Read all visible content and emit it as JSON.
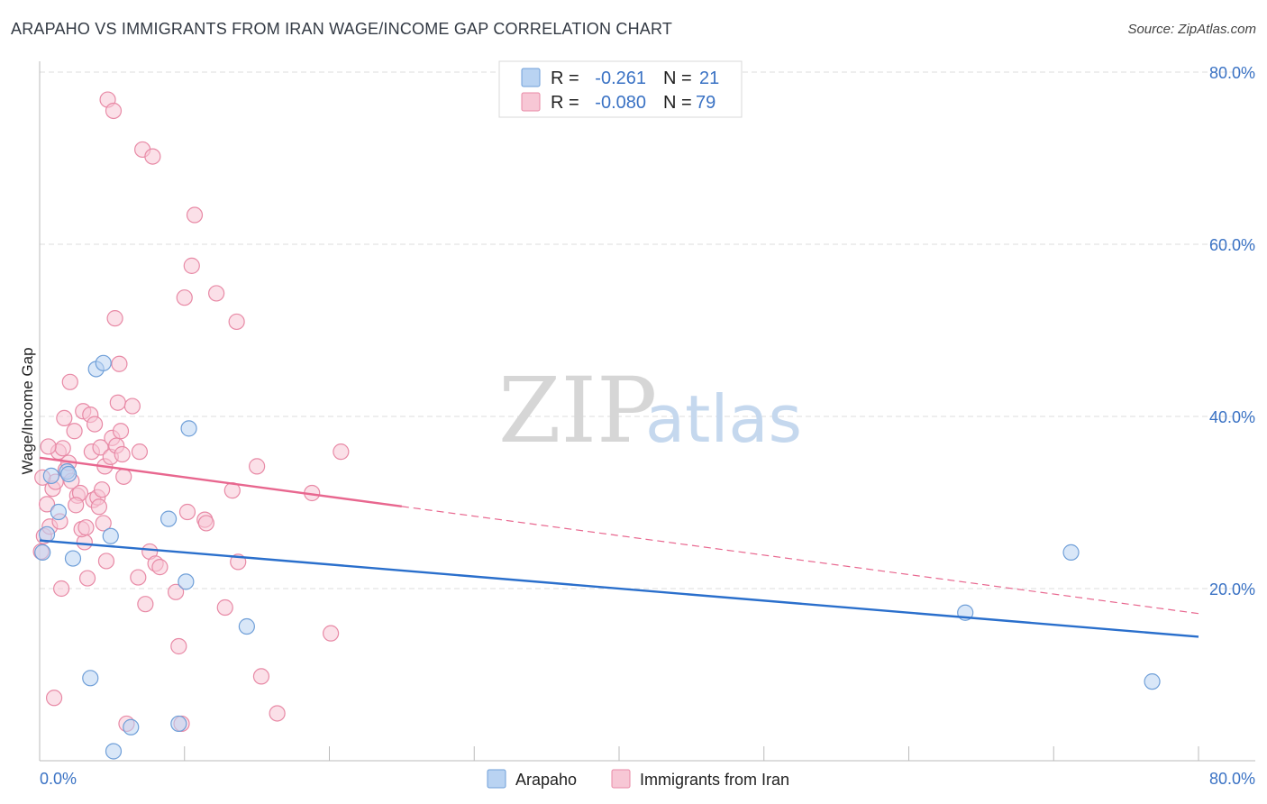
{
  "title": "ARAPAHO VS IMMIGRANTS FROM IRAN WAGE/INCOME GAP CORRELATION CHART",
  "source": "Source: ZipAtlas.com",
  "colors": {
    "blue_fill": "#b9d3f2",
    "blue_stroke": "#6f9fd8",
    "blue_line": "#2a6fcc",
    "pink_fill": "#f7c7d5",
    "pink_stroke": "#e88aa6",
    "pink_line": "#e8678f",
    "grid": "#dcdcdc",
    "axis_text": "#3a72c4"
  },
  "legend": {
    "rows": [
      {
        "r_label": "R =",
        "r_value": "-0.261",
        "n_label": "N =",
        "n_value": "21"
      },
      {
        "r_label": "R =",
        "r_value": "-0.080",
        "n_label": "N =",
        "n_value": "79"
      }
    ]
  },
  "watermark": {
    "zip": "ZIP",
    "atlas": "atlas"
  },
  "chart_data": {
    "type": "scatter",
    "title": "ARAPAHO VS IMMIGRANTS FROM IRAN WAGE/INCOME GAP CORRELATION CHART",
    "xlabel": "",
    "ylabel": "Wage/Income Gap",
    "xlim": [
      0,
      80
    ],
    "ylim": [
      0,
      80
    ],
    "x_tick_labels": [
      "0.0%",
      "80.0%"
    ],
    "y_ticks": [
      20,
      40,
      60,
      80
    ],
    "y_tick_labels": [
      "20.0%",
      "40.0%",
      "60.0%",
      "80.0%"
    ],
    "series": [
      {
        "name": "Arapaho",
        "r": -0.261,
        "n": 21,
        "trend": {
          "x": [
            0,
            80
          ],
          "y": [
            25.6,
            14.4
          ],
          "dashed_from": null
        },
        "points": [
          [
            0.2,
            24.2
          ],
          [
            0.5,
            26.3
          ],
          [
            0.8,
            33.1
          ],
          [
            1.3,
            28.9
          ],
          [
            1.9,
            33.6
          ],
          [
            2.3,
            23.5
          ],
          [
            3.5,
            9.6
          ],
          [
            3.9,
            45.5
          ],
          [
            4.9,
            26.1
          ],
          [
            5.1,
            1.1
          ],
          [
            6.3,
            3.9
          ],
          [
            8.9,
            28.1
          ],
          [
            9.6,
            4.3
          ],
          [
            10.1,
            20.8
          ],
          [
            10.3,
            38.6
          ],
          [
            14.3,
            15.6
          ],
          [
            63.9,
            17.2
          ],
          [
            71.2,
            24.2
          ],
          [
            76.8,
            9.2
          ],
          [
            2.0,
            33.3
          ],
          [
            4.4,
            46.2
          ]
        ]
      },
      {
        "name": "Immigrants from Iran",
        "r": -0.08,
        "n": 79,
        "trend": {
          "x": [
            0,
            80
          ],
          "y": [
            35.2,
            17.1
          ],
          "dashed_from": 25
        },
        "points": [
          [
            0.1,
            24.3
          ],
          [
            0.3,
            26.1
          ],
          [
            0.5,
            29.8
          ],
          [
            0.7,
            27.2
          ],
          [
            0.9,
            31.6
          ],
          [
            1.1,
            32.4
          ],
          [
            1.3,
            35.9
          ],
          [
            1.5,
            20.0
          ],
          [
            1.6,
            36.3
          ],
          [
            1.8,
            33.8
          ],
          [
            2.0,
            34.6
          ],
          [
            2.2,
            32.5
          ],
          [
            2.4,
            38.3
          ],
          [
            2.6,
            30.8
          ],
          [
            2.8,
            31.1
          ],
          [
            3.0,
            40.6
          ],
          [
            3.1,
            25.4
          ],
          [
            3.3,
            21.2
          ],
          [
            3.5,
            40.2
          ],
          [
            3.6,
            35.9
          ],
          [
            3.7,
            30.3
          ],
          [
            3.8,
            39.1
          ],
          [
            4.0,
            30.6
          ],
          [
            4.2,
            36.4
          ],
          [
            4.3,
            31.5
          ],
          [
            4.4,
            27.6
          ],
          [
            4.5,
            34.2
          ],
          [
            4.6,
            23.2
          ],
          [
            4.7,
            76.8
          ],
          [
            4.9,
            35.3
          ],
          [
            5.0,
            37.5
          ],
          [
            5.1,
            75.5
          ],
          [
            5.2,
            51.4
          ],
          [
            5.3,
            36.6
          ],
          [
            5.4,
            41.6
          ],
          [
            5.5,
            46.1
          ],
          [
            5.6,
            38.3
          ],
          [
            5.7,
            35.6
          ],
          [
            6.4,
            41.2
          ],
          [
            6.8,
            21.3
          ],
          [
            6.9,
            35.9
          ],
          [
            7.1,
            71.0
          ],
          [
            7.3,
            18.2
          ],
          [
            7.6,
            24.3
          ],
          [
            7.8,
            70.2
          ],
          [
            8.0,
            22.9
          ],
          [
            8.3,
            22.5
          ],
          [
            9.4,
            19.6
          ],
          [
            9.6,
            13.3
          ],
          [
            10.0,
            53.8
          ],
          [
            10.2,
            28.9
          ],
          [
            10.5,
            57.5
          ],
          [
            10.7,
            63.4
          ],
          [
            11.4,
            28.0
          ],
          [
            11.5,
            27.6
          ],
          [
            12.2,
            54.3
          ],
          [
            12.8,
            17.8
          ],
          [
            13.3,
            31.4
          ],
          [
            13.6,
            51.0
          ],
          [
            13.7,
            23.1
          ],
          [
            15.0,
            34.2
          ],
          [
            15.3,
            9.8
          ],
          [
            16.4,
            5.5
          ],
          [
            18.8,
            31.1
          ],
          [
            20.1,
            14.8
          ],
          [
            20.8,
            35.9
          ],
          [
            1.0,
            7.3
          ],
          [
            6.0,
            4.3
          ],
          [
            0.2,
            32.9
          ],
          [
            2.9,
            26.9
          ],
          [
            1.4,
            27.8
          ],
          [
            0.6,
            36.5
          ],
          [
            2.1,
            44.0
          ],
          [
            3.2,
            27.1
          ],
          [
            4.1,
            29.5
          ],
          [
            5.8,
            33.0
          ],
          [
            2.5,
            29.7
          ],
          [
            1.7,
            39.8
          ],
          [
            9.8,
            4.3
          ]
        ]
      }
    ]
  },
  "bottom_legend": {
    "items": [
      "Arapaho",
      "Immigrants from Iran"
    ]
  }
}
